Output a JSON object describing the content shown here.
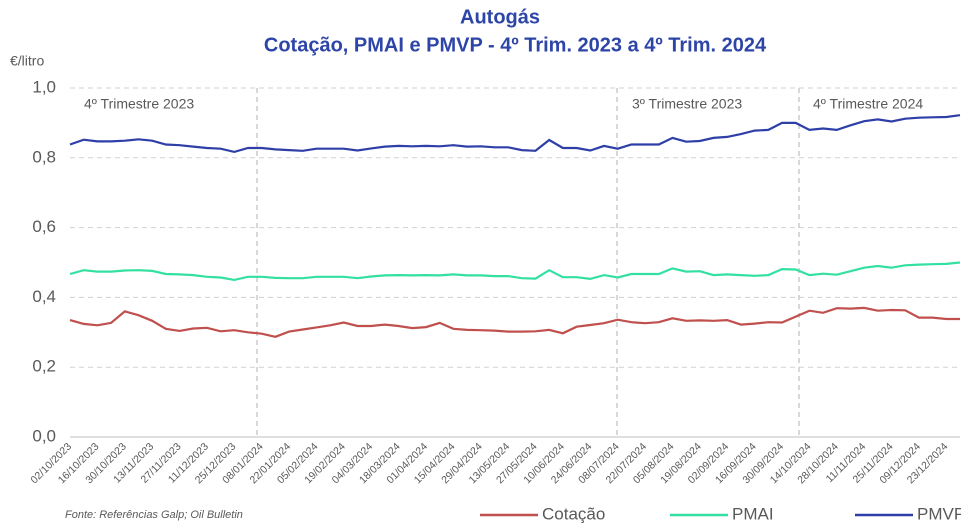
{
  "chart_data": {
    "type": "line",
    "title": "Autogás",
    "subtitle": "Cotação, PMAI e PMVP - 4º Trim. 2023 a 4º Trim. 2024",
    "y_label": "€/litro",
    "source": "Fonte: Referências Galp; Oil Bulletin",
    "annotations": [
      "4º Trimestre 2023",
      "3º Trimestre 2023",
      "4º Trimestre 2024"
    ],
    "categories": [
      "02/10/2023",
      null,
      "16/10/2023",
      null,
      "30/10/2023",
      null,
      "13/11/2023",
      null,
      "27/11/2023",
      null,
      "11/12/2023",
      null,
      "25/12/2023",
      null,
      "08/01/2024",
      null,
      "22/01/2024",
      null,
      "05/02/2024",
      null,
      "19/02/2024",
      null,
      "04/03/2024",
      null,
      "18/03/2024",
      null,
      "01/04/2024",
      null,
      "15/04/2024",
      null,
      "29/04/2024",
      null,
      "13/05/2024",
      null,
      "27/05/2024",
      null,
      "10/06/2024",
      null,
      "24/06/2024",
      null,
      "08/07/2024",
      null,
      "22/07/2024",
      null,
      "05/08/2024",
      null,
      "19/08/2024",
      null,
      "02/09/2024",
      null,
      "16/09/2024",
      null,
      "30/09/2024",
      null,
      "14/10/2024",
      null,
      "28/10/2024",
      null,
      "11/11/2024",
      null,
      "25/11/2024",
      null,
      "09/12/2024",
      null,
      "23/12/2024",
      null
    ],
    "series": [
      {
        "name": "Cotação",
        "color": "#c0504d",
        "values": [
          0.335,
          0.324,
          0.32,
          0.327,
          0.36,
          0.349,
          0.333,
          0.31,
          0.304,
          0.311,
          0.313,
          0.303,
          0.306,
          0.3,
          0.296,
          0.287,
          0.302,
          0.308,
          0.314,
          0.32,
          0.328,
          0.318,
          0.318,
          0.322,
          0.318,
          0.312,
          0.315,
          0.327,
          0.31,
          0.307,
          0.306,
          0.305,
          0.302,
          0.302,
          0.303,
          0.307,
          0.297,
          0.316,
          0.321,
          0.326,
          0.336,
          0.329,
          0.326,
          0.329,
          0.34,
          0.333,
          0.334,
          0.333,
          0.335,
          0.322,
          0.325,
          0.329,
          0.328,
          0.345,
          0.362,
          0.356,
          0.369,
          0.368,
          0.37,
          0.362,
          0.364,
          0.363,
          0.342,
          0.342,
          0.338,
          0.338
        ]
      },
      {
        "name": "PMAI",
        "color": "#33e0a1",
        "values": [
          0.467,
          0.478,
          0.474,
          0.474,
          0.477,
          0.478,
          0.476,
          0.467,
          0.466,
          0.464,
          0.459,
          0.457,
          0.45,
          0.459,
          0.459,
          0.456,
          0.455,
          0.455,
          0.459,
          0.459,
          0.459,
          0.455,
          0.46,
          0.463,
          0.464,
          0.463,
          0.464,
          0.463,
          0.466,
          0.463,
          0.463,
          0.461,
          0.461,
          0.455,
          0.454,
          0.478,
          0.458,
          0.458,
          0.453,
          0.464,
          0.457,
          0.467,
          0.467,
          0.467,
          0.483,
          0.474,
          0.475,
          0.464,
          0.466,
          0.464,
          0.462,
          0.464,
          0.481,
          0.48,
          0.464,
          0.468,
          0.465,
          0.475,
          0.485,
          0.49,
          0.485,
          0.492,
          0.494,
          0.495,
          0.496,
          0.5
        ]
      },
      {
        "name": "PMVP",
        "color": "#2e3fa8",
        "values": [
          0.838,
          0.852,
          0.847,
          0.847,
          0.849,
          0.853,
          0.849,
          0.838,
          0.836,
          0.832,
          0.828,
          0.826,
          0.817,
          0.828,
          0.828,
          0.824,
          0.822,
          0.82,
          0.826,
          0.826,
          0.826,
          0.821,
          0.827,
          0.832,
          0.834,
          0.833,
          0.834,
          0.833,
          0.836,
          0.832,
          0.833,
          0.83,
          0.83,
          0.822,
          0.82,
          0.851,
          0.828,
          0.828,
          0.821,
          0.834,
          0.826,
          0.838,
          0.838,
          0.838,
          0.857,
          0.846,
          0.848,
          0.857,
          0.86,
          0.868,
          0.878,
          0.88,
          0.9,
          0.9,
          0.88,
          0.884,
          0.88,
          0.893,
          0.905,
          0.91,
          0.904,
          0.912,
          0.915,
          0.916,
          0.917,
          0.922
        ]
      }
    ],
    "ylim": [
      0,
      1
    ],
    "yticks": [
      {
        "value": 0,
        "label": "0,0"
      },
      {
        "value": 0.2,
        "label": "0,2"
      },
      {
        "value": 0.4,
        "label": "0,4"
      },
      {
        "value": 0.6,
        "label": "0,6"
      },
      {
        "value": 0.8,
        "label": "0,8"
      },
      {
        "value": 1,
        "label": "1,0"
      }
    ],
    "grid": true,
    "legend": "bottom"
  }
}
